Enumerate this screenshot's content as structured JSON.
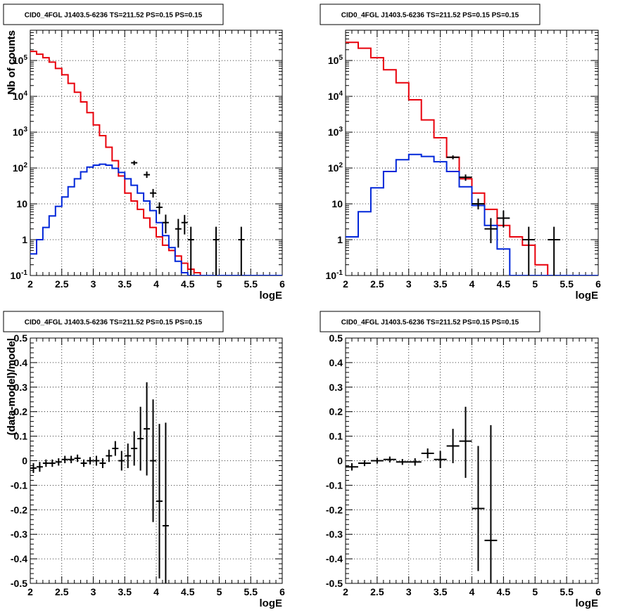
{
  "chart_data": [
    {
      "type": "line",
      "title": "CID0_4FGL J1403.5-6236 TS=211.52 PS=0.15 PS=0.15",
      "xlabel": "logE",
      "ylabel": "Nb of counts",
      "xlim": [
        2,
        6
      ],
      "ylim": [
        0.1,
        700000
      ],
      "yscale": "log",
      "grid": true,
      "x_ticks": [
        "2",
        "2.5",
        "3",
        "3.5",
        "4",
        "4.5",
        "5",
        "5.5",
        "6"
      ],
      "y_ticks": [
        "10^-1",
        "1",
        "10",
        "10^2",
        "10^3",
        "10^4",
        "10^5"
      ],
      "bin_edges": [
        2.0,
        2.1,
        2.2,
        2.3,
        2.4,
        2.5,
        2.6,
        2.7,
        2.8,
        2.9,
        3.0,
        3.1,
        3.2,
        3.3,
        3.4,
        3.5,
        3.6,
        3.7,
        3.8,
        3.9,
        4.0,
        4.1,
        4.2,
        4.3,
        4.4,
        4.5,
        4.6,
        4.7,
        4.8,
        4.9,
        5.0,
        5.1,
        5.2,
        5.3,
        5.4,
        5.5,
        5.6,
        5.7,
        5.8,
        5.9,
        6.0
      ],
      "series": [
        {
          "style": "step",
          "color": "#e8000b",
          "values": [
            180000,
            150000,
            120000,
            90000,
            60000,
            40000,
            23000,
            13000,
            7000,
            3500,
            1600,
            800,
            380,
            160,
            60,
            20,
            12,
            7,
            4,
            2.2,
            1.2,
            0.7,
            0.5,
            0.35,
            0.22,
            0.15,
            0.12,
            0.1,
            0.1,
            0.1,
            0.1,
            0.1,
            0.1,
            0.1,
            0.1,
            0.1,
            0.1,
            0.1,
            0.1,
            0.1
          ]
        },
        {
          "style": "step",
          "color": "#0026d9",
          "values": [
            0.4,
            1.0,
            2.2,
            4.6,
            8.5,
            15.5,
            30,
            50,
            78,
            106,
            120,
            128,
            120,
            98,
            75,
            50,
            33,
            20,
            12,
            6.5,
            3,
            1.3,
            0.6,
            0.25,
            0.12,
            0.1,
            0.1,
            0.1,
            0.1,
            0.1,
            0.1,
            0.1,
            0.1,
            0.1,
            0.1,
            0.1,
            0.1,
            0.1,
            0.1,
            0.1
          ]
        },
        {
          "style": "errorbars",
          "color": "#000000",
          "points": [
            {
              "x": 3.65,
              "y": 140,
              "xerr": 0.05,
              "ylo": 120,
              "yhi": 160
            },
            {
              "x": 3.85,
              "y": 65,
              "xerr": 0.05,
              "ylo": 53,
              "yhi": 80
            },
            {
              "x": 3.95,
              "y": 20,
              "xerr": 0.05,
              "ylo": 15,
              "yhi": 26
            },
            {
              "x": 4.05,
              "y": 8,
              "xerr": 0.05,
              "ylo": 5.2,
              "yhi": 11
            },
            {
              "x": 4.15,
              "y": 3,
              "xerr": 0.05,
              "ylo": 1.5,
              "yhi": 5
            },
            {
              "x": 4.35,
              "y": 2,
              "xerr": 0.05,
              "ylo": 0.6,
              "yhi": 3.8
            },
            {
              "x": 4.45,
              "y": 3,
              "xerr": 0.05,
              "ylo": 1.4,
              "yhi": 4.9
            },
            {
              "x": 4.55,
              "y": 1,
              "xerr": 0.05,
              "ylo": 0.1,
              "yhi": 2.3
            },
            {
              "x": 4.95,
              "y": 1,
              "xerr": 0.05,
              "ylo": 0.1,
              "yhi": 2.3
            },
            {
              "x": 5.35,
              "y": 1,
              "xerr": 0.05,
              "ylo": 0.1,
              "yhi": 2.3
            }
          ]
        }
      ]
    },
    {
      "type": "line",
      "title": "CID0_4FGL J1403.5-6236 TS=211.52 PS=0.15 PS=0.15",
      "xlabel": "logE",
      "ylabel": "Nb of counts",
      "xlim": [
        2,
        6
      ],
      "ylim": [
        0.1,
        700000
      ],
      "yscale": "log",
      "grid": true,
      "x_ticks": [
        "2",
        "2.5",
        "3",
        "3.5",
        "4",
        "4.5",
        "5",
        "5.5",
        "6"
      ],
      "y_ticks": [
        "10^-1",
        "1",
        "10",
        "10^2",
        "10^3",
        "10^4",
        "10^5"
      ],
      "bin_edges": [
        2.0,
        2.2,
        2.4,
        2.6,
        2.8,
        3.0,
        3.2,
        3.4,
        3.6,
        3.8,
        4.0,
        4.2,
        4.4,
        4.6,
        4.8,
        5.0,
        5.2,
        5.4,
        5.6,
        5.8,
        6.0
      ],
      "series": [
        {
          "style": "step",
          "color": "#e8000b",
          "values": [
            320000,
            220000,
            120000,
            55000,
            24000,
            8000,
            2200,
            700,
            200,
            50,
            20,
            7,
            2.5,
            1.2,
            0.7,
            0.2,
            0.1,
            0.1,
            0.1,
            0.1
          ]
        },
        {
          "style": "step",
          "color": "#0026d9",
          "values": [
            1.2,
            6,
            28,
            80,
            170,
            240,
            210,
            150,
            80,
            30,
            9,
            2.5,
            0.55,
            0.1,
            0.1,
            0.1,
            0.1,
            0.1,
            0.1,
            0.1
          ]
        },
        {
          "style": "errorbars",
          "color": "#000000",
          "points": [
            {
              "x": 3.7,
              "y": 200,
              "xerr": 0.1,
              "ylo": 175,
              "yhi": 225
            },
            {
              "x": 3.9,
              "y": 55,
              "xerr": 0.1,
              "ylo": 44,
              "yhi": 66
            },
            {
              "x": 4.1,
              "y": 10,
              "xerr": 0.1,
              "ylo": 7,
              "yhi": 14
            },
            {
              "x": 4.3,
              "y": 2,
              "xerr": 0.1,
              "ylo": 0.8,
              "yhi": 4
            },
            {
              "x": 4.5,
              "y": 4,
              "xerr": 0.1,
              "ylo": 2.2,
              "yhi": 6.5
            },
            {
              "x": 4.9,
              "y": 1,
              "xerr": 0.1,
              "ylo": 0.1,
              "yhi": 2.3
            },
            {
              "x": 5.3,
              "y": 1,
              "xerr": 0.1,
              "ylo": 0.1,
              "yhi": 2.3
            }
          ]
        }
      ]
    },
    {
      "type": "scatter",
      "title": "CID0_4FGL J1403.5-6236 TS=211.52 PS=0.15 PS=0.15",
      "xlabel": "logE",
      "ylabel": "(data-model)/model",
      "xlim": [
        2,
        6
      ],
      "ylim": [
        -0.5,
        0.5
      ],
      "yscale": "linear",
      "grid": true,
      "x_ticks": [
        "2",
        "2.5",
        "3",
        "3.5",
        "4",
        "4.5",
        "5",
        "5.5",
        "6"
      ],
      "y_ticks": [
        "-0.5",
        "-0.4",
        "-0.3",
        "-0.2",
        "-0.1",
        "0",
        "0.1",
        "0.2",
        "0.3",
        "0.4",
        "0.5"
      ],
      "series": [
        {
          "style": "errorbars",
          "color": "#000000",
          "points": [
            {
              "x": 2.05,
              "y": -0.03,
              "xerr": 0.05,
              "ylo": -0.05,
              "yhi": -0.01
            },
            {
              "x": 2.15,
              "y": -0.025,
              "xerr": 0.05,
              "ylo": -0.045,
              "yhi": -0.005
            },
            {
              "x": 2.25,
              "y": -0.01,
              "xerr": 0.05,
              "ylo": -0.025,
              "yhi": 0.005
            },
            {
              "x": 2.35,
              "y": -0.01,
              "xerr": 0.05,
              "ylo": -0.025,
              "yhi": 0.005
            },
            {
              "x": 2.45,
              "y": -0.005,
              "xerr": 0.05,
              "ylo": -0.02,
              "yhi": 0.01
            },
            {
              "x": 2.55,
              "y": 0.005,
              "xerr": 0.05,
              "ylo": -0.01,
              "yhi": 0.02
            },
            {
              "x": 2.65,
              "y": 0.005,
              "xerr": 0.05,
              "ylo": -0.01,
              "yhi": 0.02
            },
            {
              "x": 2.75,
              "y": 0.01,
              "xerr": 0.05,
              "ylo": -0.005,
              "yhi": 0.025
            },
            {
              "x": 2.85,
              "y": -0.01,
              "xerr": 0.05,
              "ylo": -0.025,
              "yhi": 0.005
            },
            {
              "x": 2.95,
              "y": 0.0,
              "xerr": 0.05,
              "ylo": -0.015,
              "yhi": 0.015
            },
            {
              "x": 3.05,
              "y": 0.0,
              "xerr": 0.05,
              "ylo": -0.02,
              "yhi": 0.02
            },
            {
              "x": 3.15,
              "y": -0.01,
              "xerr": 0.05,
              "ylo": -0.03,
              "yhi": 0.01
            },
            {
              "x": 3.25,
              "y": 0.02,
              "xerr": 0.05,
              "ylo": -0.005,
              "yhi": 0.045
            },
            {
              "x": 3.35,
              "y": 0.05,
              "xerr": 0.05,
              "ylo": 0.02,
              "yhi": 0.08
            },
            {
              "x": 3.45,
              "y": 0.0,
              "xerr": 0.05,
              "ylo": -0.04,
              "yhi": 0.04
            },
            {
              "x": 3.55,
              "y": 0.02,
              "xerr": 0.05,
              "ylo": -0.03,
              "yhi": 0.07
            },
            {
              "x": 3.65,
              "y": 0.05,
              "xerr": 0.05,
              "ylo": -0.02,
              "yhi": 0.12
            },
            {
              "x": 3.75,
              "y": 0.09,
              "xerr": 0.05,
              "ylo": -0.04,
              "yhi": 0.22
            },
            {
              "x": 3.85,
              "y": 0.13,
              "xerr": 0.05,
              "ylo": -0.06,
              "yhi": 0.32
            },
            {
              "x": 3.95,
              "y": 0.0,
              "xerr": 0.05,
              "ylo": -0.25,
              "yhi": 0.25
            },
            {
              "x": 4.05,
              "y": -0.165,
              "xerr": 0.05,
              "ylo": -0.48,
              "yhi": 0.15
            },
            {
              "x": 4.15,
              "y": -0.265,
              "xerr": 0.05,
              "ylo": -0.5,
              "yhi": 0.155
            }
          ]
        }
      ]
    },
    {
      "type": "scatter",
      "title": "CID0_4FGL J1403.5-6236 TS=211.52 PS=0.15 PS=0.15",
      "xlabel": "logE",
      "ylabel": "(data-model)/model",
      "xlim": [
        2,
        6
      ],
      "ylim": [
        -0.5,
        0.5
      ],
      "yscale": "linear",
      "grid": true,
      "x_ticks": [
        "2",
        "2.5",
        "3",
        "3.5",
        "4",
        "4.5",
        "5",
        "5.5",
        "6"
      ],
      "y_ticks": [
        "-0.5",
        "-0.4",
        "-0.3",
        "-0.2",
        "-0.1",
        "0",
        "0.1",
        "0.2",
        "0.3",
        "0.4",
        "0.5"
      ],
      "series": [
        {
          "style": "errorbars",
          "color": "#000000",
          "points": [
            {
              "x": 2.1,
              "y": -0.025,
              "xerr": 0.1,
              "ylo": -0.04,
              "yhi": -0.01
            },
            {
              "x": 2.3,
              "y": -0.01,
              "xerr": 0.1,
              "ylo": -0.022,
              "yhi": 0.002
            },
            {
              "x": 2.5,
              "y": 0.0,
              "xerr": 0.1,
              "ylo": -0.012,
              "yhi": 0.012
            },
            {
              "x": 2.7,
              "y": 0.005,
              "xerr": 0.1,
              "ylo": -0.007,
              "yhi": 0.017
            },
            {
              "x": 2.9,
              "y": -0.005,
              "xerr": 0.1,
              "ylo": -0.017,
              "yhi": 0.007
            },
            {
              "x": 3.1,
              "y": -0.005,
              "xerr": 0.1,
              "ylo": -0.02,
              "yhi": 0.01
            },
            {
              "x": 3.3,
              "y": 0.03,
              "xerr": 0.1,
              "ylo": 0.01,
              "yhi": 0.05
            },
            {
              "x": 3.5,
              "y": 0.005,
              "xerr": 0.1,
              "ylo": -0.03,
              "yhi": 0.04
            },
            {
              "x": 3.7,
              "y": 0.06,
              "xerr": 0.1,
              "ylo": -0.01,
              "yhi": 0.13
            },
            {
              "x": 3.9,
              "y": 0.08,
              "xerr": 0.1,
              "ylo": -0.07,
              "yhi": 0.22
            },
            {
              "x": 4.1,
              "y": -0.195,
              "xerr": 0.1,
              "ylo": -0.45,
              "yhi": 0.06
            },
            {
              "x": 4.3,
              "y": -0.325,
              "xerr": 0.1,
              "ylo": -0.5,
              "yhi": 0.145
            }
          ]
        }
      ]
    }
  ]
}
